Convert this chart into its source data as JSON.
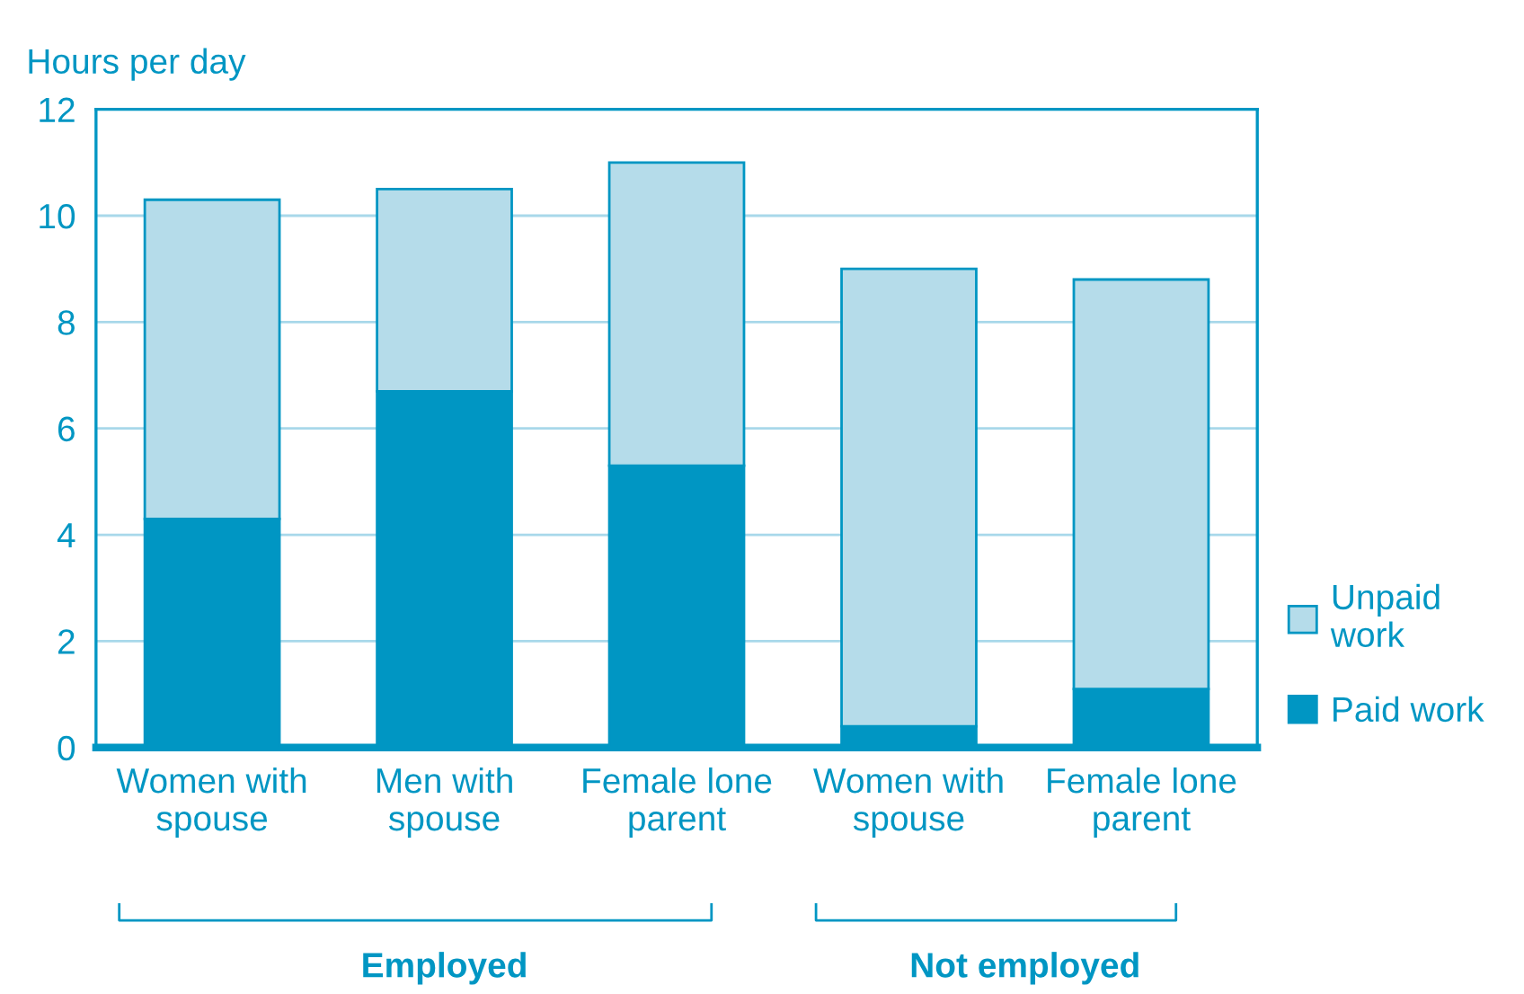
{
  "chart_data": {
    "type": "bar",
    "stacked": true,
    "ylabel": "Hours per day",
    "categories": [
      "Women with\nspouse",
      "Men with\nspouse",
      "Female lone\nparent",
      "Women with\nspouse",
      "Female lone\nparent"
    ],
    "series": [
      {
        "name": "Paid work",
        "color": "#0096c3",
        "values": [
          4.3,
          6.7,
          5.3,
          0.4,
          1.1
        ]
      },
      {
        "name": "Unpaid\nwork",
        "color": "#b5dcea",
        "values": [
          6.0,
          3.8,
          5.7,
          8.6,
          7.7
        ]
      }
    ],
    "ylim": [
      0,
      12
    ],
    "yticks": [
      0,
      2,
      4,
      6,
      8,
      10,
      12
    ],
    "grid": "y",
    "legend": "right",
    "annotations": [
      "Employed",
      "Not employed"
    ]
  }
}
